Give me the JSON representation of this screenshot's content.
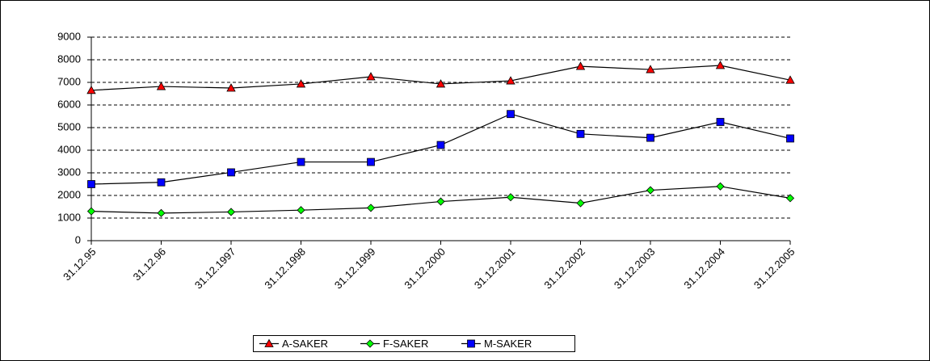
{
  "chart_data": {
    "type": "line",
    "categories": [
      "31.12.95",
      "31.12.96",
      "31.12.1997",
      "31.12.1998",
      "31.12.1999",
      "31.12.2000",
      "31.12.2001",
      "31.12.2002",
      "31.12.2003",
      "31.12.2004",
      "31.12.2005"
    ],
    "series": [
      {
        "name": "A-SAKER",
        "color": "#ff0000",
        "marker": "triangle",
        "values": [
          6650,
          6820,
          6750,
          6930,
          7250,
          6930,
          7070,
          7710,
          7570,
          7750,
          7100
        ]
      },
      {
        "name": "F-SAKER",
        "color": "#00ff00",
        "marker": "diamond",
        "values": [
          1300,
          1220,
          1270,
          1350,
          1450,
          1730,
          1920,
          1660,
          2230,
          2400,
          1880
        ]
      },
      {
        "name": "M-SAKER",
        "color": "#0000ff",
        "marker": "square",
        "values": [
          2500,
          2580,
          3020,
          3480,
          3480,
          4230,
          5600,
          4720,
          4550,
          5250,
          4520
        ]
      }
    ],
    "ylim": [
      0,
      9000
    ],
    "yticks": [
      0,
      1000,
      2000,
      3000,
      4000,
      5000,
      6000,
      7000,
      8000,
      9000
    ],
    "grid": true,
    "legend": "bottom"
  }
}
